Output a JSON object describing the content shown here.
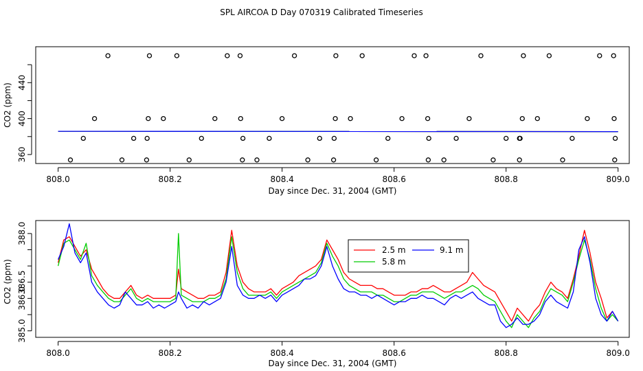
{
  "figure_title": "SPL AIRCOA D  Day 070319  Calibrated Timeseries",
  "chart_data": [
    {
      "type": "scatter",
      "title": "",
      "xlabel": "Day since Dec. 31, 2004 (GMT)",
      "ylabel": "CO2 (ppm)",
      "xlim": [
        807.96,
        809.02
      ],
      "ylim": [
        350,
        480
      ],
      "xticks": [
        808.0,
        808.2,
        808.4,
        808.6,
        808.8,
        809.0
      ],
      "xtick_labels": [
        "808.0",
        "808.2",
        "808.4",
        "808.6",
        "808.8",
        "809.0"
      ],
      "yticks": [
        360,
        380,
        400,
        420,
        440,
        460
      ],
      "ytick_labels": [
        "360",
        "",
        "400",
        "",
        "440",
        ""
      ],
      "calibration_points": {
        "levels": [
          354,
          378,
          400,
          470
        ],
        "x": [
          [
            808.022,
            808.114,
            808.158,
            808.234,
            808.329,
            808.355,
            808.446,
            808.492,
            808.568,
            808.661,
            808.689,
            808.777,
            808.824,
            808.901,
            808.994
          ],
          [
            808.045,
            808.135,
            808.159,
            808.256,
            808.33,
            808.377,
            808.467,
            808.493,
            808.589,
            808.662,
            808.711,
            808.8,
            808.824,
            808.825,
            808.918,
            808.995
          ],
          [
            808.065,
            808.161,
            808.188,
            808.28,
            808.326,
            808.4,
            808.495,
            808.522,
            808.614,
            808.66,
            808.734,
            808.829,
            808.856,
            808.945,
            808.993
          ],
          [
            808.089,
            808.163,
            808.212,
            808.302,
            808.325,
            808.422,
            808.496,
            808.543,
            808.636,
            808.657,
            808.755,
            808.831,
            808.877,
            808.967,
            808.992
          ]
        ]
      },
      "series": [
        {
          "name": "2.5 m",
          "color": "#ff0000",
          "x": [
            808.0,
            809.0
          ],
          "values": [
            385.9,
            385.5
          ]
        },
        {
          "name": "5.8 m",
          "color": "#00cc00",
          "x": [
            808.0,
            809.0
          ],
          "values": [
            385.9,
            385.5
          ]
        },
        {
          "name": "9.1 m",
          "color": "#0000ff",
          "x": [
            808.0,
            809.0
          ],
          "values": [
            385.9,
            385.5
          ]
        }
      ]
    },
    {
      "type": "line",
      "title": "",
      "xlabel": "Day since Dec. 31, 2004 (GMT)",
      "ylabel": "CO2 (ppm)",
      "xlim": [
        807.96,
        809.02
      ],
      "ylim": [
        384.8,
        388.4
      ],
      "xticks": [
        808.0,
        808.2,
        808.4,
        808.6,
        808.8,
        809.0
      ],
      "xtick_labels": [
        "808.0",
        "808.2",
        "808.4",
        "808.6",
        "808.8",
        "809.0"
      ],
      "yticks": [
        385.0,
        385.5,
        386.0,
        386.5,
        387.0,
        387.5,
        388.0
      ],
      "ytick_labels": [
        "385.0",
        "",
        "386.0",
        "386.5",
        "",
        "",
        "388.0"
      ],
      "legend": {
        "position": "top-center",
        "entries": [
          "2.5 m",
          "9.1 m",
          "5.8 m"
        ]
      },
      "series": [
        {
          "name": "2.5 m",
          "color": "#ff0000",
          "x": [
            808.0,
            808.01,
            808.02,
            808.03,
            808.04,
            808.05,
            808.06,
            808.07,
            808.08,
            808.09,
            808.1,
            808.11,
            808.12,
            808.13,
            808.14,
            808.15,
            808.16,
            808.17,
            808.18,
            808.19,
            808.2,
            808.21,
            808.215,
            808.22,
            808.23,
            808.24,
            808.25,
            808.26,
            808.27,
            808.28,
            808.29,
            808.3,
            808.31,
            808.32,
            808.33,
            808.34,
            808.35,
            808.36,
            808.37,
            808.38,
            808.39,
            808.4,
            808.41,
            808.42,
            808.43,
            808.44,
            808.45,
            808.46,
            808.47,
            808.48,
            808.49,
            808.5,
            808.51,
            808.52,
            808.53,
            808.54,
            808.55,
            808.56,
            808.57,
            808.58,
            808.59,
            808.6,
            808.61,
            808.62,
            808.63,
            808.64,
            808.65,
            808.66,
            808.67,
            808.68,
            808.69,
            808.7,
            808.71,
            808.72,
            808.73,
            808.74,
            808.75,
            808.76,
            808.77,
            808.78,
            808.79,
            808.8,
            808.81,
            808.82,
            808.83,
            808.84,
            808.85,
            808.86,
            808.87,
            808.88,
            808.89,
            808.9,
            808.91,
            808.92,
            808.93,
            808.94,
            808.95,
            808.96,
            808.97,
            808.98,
            808.99,
            809.0
          ],
          "values": [
            387.1,
            387.8,
            387.9,
            387.6,
            387.3,
            387.5,
            386.9,
            386.6,
            386.3,
            386.1,
            386.0,
            386.0,
            386.2,
            386.4,
            386.1,
            386.0,
            386.1,
            386.0,
            386.0,
            386.0,
            386.0,
            386.1,
            386.9,
            386.3,
            386.2,
            386.1,
            386.0,
            386.0,
            386.1,
            386.1,
            386.2,
            386.8,
            388.1,
            387.0,
            386.5,
            386.3,
            386.2,
            386.2,
            386.2,
            386.3,
            386.1,
            386.3,
            386.4,
            386.5,
            386.7,
            386.8,
            386.9,
            387.0,
            387.2,
            387.8,
            387.5,
            387.2,
            386.8,
            386.6,
            386.5,
            386.4,
            386.4,
            386.4,
            386.3,
            386.3,
            386.2,
            386.1,
            386.1,
            386.1,
            386.2,
            386.2,
            386.3,
            386.3,
            386.4,
            386.3,
            386.2,
            386.2,
            386.3,
            386.4,
            386.5,
            386.8,
            386.6,
            386.4,
            386.3,
            386.2,
            385.9,
            385.6,
            385.3,
            385.7,
            385.5,
            385.3,
            385.6,
            385.8,
            386.2,
            386.5,
            386.3,
            386.2,
            386.0,
            386.6,
            387.3,
            388.1,
            387.4,
            386.5,
            386.0,
            385.4,
            385.6,
            385.3
          ]
        },
        {
          "name": "5.8 m",
          "color": "#00cc00",
          "x": [
            808.0,
            808.01,
            808.02,
            808.03,
            808.04,
            808.05,
            808.06,
            808.07,
            808.08,
            808.09,
            808.1,
            808.11,
            808.12,
            808.13,
            808.14,
            808.15,
            808.16,
            808.17,
            808.18,
            808.19,
            808.2,
            808.21,
            808.215,
            808.22,
            808.23,
            808.24,
            808.25,
            808.26,
            808.27,
            808.28,
            808.29,
            808.3,
            808.31,
            808.32,
            808.33,
            808.34,
            808.35,
            808.36,
            808.37,
            808.38,
            808.39,
            808.4,
            808.41,
            808.42,
            808.43,
            808.44,
            808.45,
            808.46,
            808.47,
            808.48,
            808.49,
            808.5,
            808.51,
            808.52,
            808.53,
            808.54,
            808.55,
            808.56,
            808.57,
            808.58,
            808.59,
            808.6,
            808.61,
            808.62,
            808.63,
            808.64,
            808.65,
            808.66,
            808.67,
            808.68,
            808.69,
            808.7,
            808.71,
            808.72,
            808.73,
            808.74,
            808.75,
            808.76,
            808.77,
            808.78,
            808.79,
            808.8,
            808.81,
            808.82,
            808.83,
            808.84,
            808.85,
            808.86,
            808.87,
            808.88,
            808.89,
            808.9,
            808.91,
            808.92,
            808.93,
            808.94,
            808.95,
            808.96,
            808.97,
            808.98,
            808.99,
            809.0
          ],
          "values": [
            387.0,
            387.7,
            387.8,
            387.5,
            387.2,
            387.7,
            386.7,
            386.4,
            386.2,
            386.0,
            385.9,
            385.9,
            386.1,
            386.3,
            386.0,
            385.9,
            386.0,
            385.9,
            385.9,
            385.9,
            385.9,
            386.0,
            388.0,
            386.1,
            386.0,
            385.9,
            385.9,
            385.9,
            386.0,
            386.0,
            386.1,
            386.6,
            387.9,
            386.8,
            386.3,
            386.1,
            386.1,
            386.1,
            386.1,
            386.2,
            386.0,
            386.2,
            386.3,
            386.4,
            386.5,
            386.6,
            386.7,
            386.8,
            387.1,
            387.7,
            387.3,
            387.0,
            386.6,
            386.4,
            386.3,
            386.2,
            386.2,
            386.2,
            386.1,
            386.1,
            386.0,
            385.9,
            385.9,
            386.0,
            386.1,
            386.1,
            386.2,
            386.2,
            386.2,
            386.1,
            386.0,
            386.1,
            386.2,
            386.2,
            386.3,
            386.4,
            386.3,
            386.1,
            386.0,
            385.9,
            385.6,
            385.3,
            385.1,
            385.5,
            385.3,
            385.1,
            385.4,
            385.6,
            386.0,
            386.3,
            386.2,
            386.1,
            385.9,
            386.5,
            387.2,
            387.8,
            387.2,
            386.3,
            385.7,
            385.3,
            385.5,
            385.3
          ]
        },
        {
          "name": "9.1 m",
          "color": "#0000ff",
          "x": [
            808.0,
            808.01,
            808.02,
            808.03,
            808.04,
            808.05,
            808.06,
            808.07,
            808.08,
            808.09,
            808.1,
            808.11,
            808.12,
            808.13,
            808.14,
            808.15,
            808.16,
            808.17,
            808.18,
            808.19,
            808.2,
            808.21,
            808.215,
            808.22,
            808.23,
            808.24,
            808.25,
            808.26,
            808.27,
            808.28,
            808.29,
            808.3,
            808.31,
            808.32,
            808.33,
            808.34,
            808.35,
            808.36,
            808.37,
            808.38,
            808.39,
            808.4,
            808.41,
            808.42,
            808.43,
            808.44,
            808.45,
            808.46,
            808.47,
            808.48,
            808.49,
            808.5,
            808.51,
            808.52,
            808.53,
            808.54,
            808.55,
            808.56,
            808.57,
            808.58,
            808.59,
            808.6,
            808.61,
            808.62,
            808.63,
            808.64,
            808.65,
            808.66,
            808.67,
            808.68,
            808.69,
            808.7,
            808.71,
            808.72,
            808.73,
            808.74,
            808.75,
            808.76,
            808.77,
            808.78,
            808.79,
            808.8,
            808.81,
            808.82,
            808.83,
            808.84,
            808.85,
            808.86,
            808.87,
            808.88,
            808.89,
            808.9,
            808.91,
            808.92,
            808.93,
            808.94,
            808.95,
            808.96,
            808.97,
            808.98,
            808.99,
            809.0
          ],
          "values": [
            387.2,
            387.6,
            388.3,
            387.4,
            387.1,
            387.4,
            386.5,
            386.2,
            386.0,
            385.8,
            385.7,
            385.8,
            386.2,
            386.0,
            385.8,
            385.8,
            385.9,
            385.7,
            385.8,
            385.7,
            385.8,
            385.9,
            386.2,
            386.0,
            385.7,
            385.8,
            385.7,
            385.9,
            385.8,
            385.9,
            386.0,
            386.5,
            387.6,
            386.4,
            386.1,
            386.0,
            386.0,
            386.1,
            386.0,
            386.1,
            385.9,
            386.1,
            386.2,
            386.3,
            386.4,
            386.6,
            386.6,
            386.7,
            387.0,
            387.6,
            387.0,
            386.6,
            386.3,
            386.2,
            386.2,
            386.1,
            386.1,
            386.0,
            386.1,
            386.0,
            385.9,
            385.8,
            385.9,
            385.9,
            386.0,
            386.0,
            386.1,
            386.0,
            386.0,
            385.9,
            385.8,
            386.0,
            386.1,
            386.0,
            386.1,
            386.2,
            386.0,
            385.9,
            385.8,
            385.8,
            385.3,
            385.1,
            385.2,
            385.4,
            385.2,
            385.2,
            385.3,
            385.5,
            385.9,
            386.1,
            385.9,
            385.8,
            385.7,
            386.2,
            387.5,
            387.9,
            387.1,
            386.0,
            385.5,
            385.3,
            385.6,
            385.3
          ]
        }
      ]
    }
  ]
}
